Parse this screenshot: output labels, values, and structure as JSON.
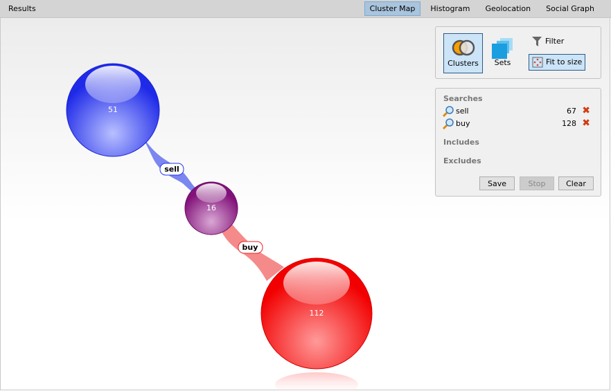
{
  "header": {
    "title": "Results",
    "tabs": [
      {
        "label": "Cluster Map",
        "active": true
      },
      {
        "label": "Histogram"
      },
      {
        "label": "Geolocation"
      },
      {
        "label": "Social Graph"
      }
    ]
  },
  "toolbar": {
    "clusters": "Clusters",
    "sets": "Sets",
    "filter": "Filter",
    "fit": "Fit to size"
  },
  "searches_panel": {
    "searches_title": "Searches",
    "searches": [
      {
        "term": "sell",
        "count": "67"
      },
      {
        "term": "buy",
        "count": "128"
      }
    ],
    "includes_title": "Includes",
    "excludes_title": "Excludes",
    "save": "Save",
    "stop": "Stop",
    "clear": "Clear"
  },
  "cluster_map": {
    "clusters": [
      {
        "count": "51",
        "color": "#2233ee"
      },
      {
        "count": "16",
        "color": "#8a1a80"
      },
      {
        "count": "112",
        "color": "#ff0000"
      }
    ],
    "links": [
      {
        "label": "sell",
        "color": "#7b86f0"
      },
      {
        "label": "buy",
        "color": "#f58a8a"
      }
    ]
  }
}
